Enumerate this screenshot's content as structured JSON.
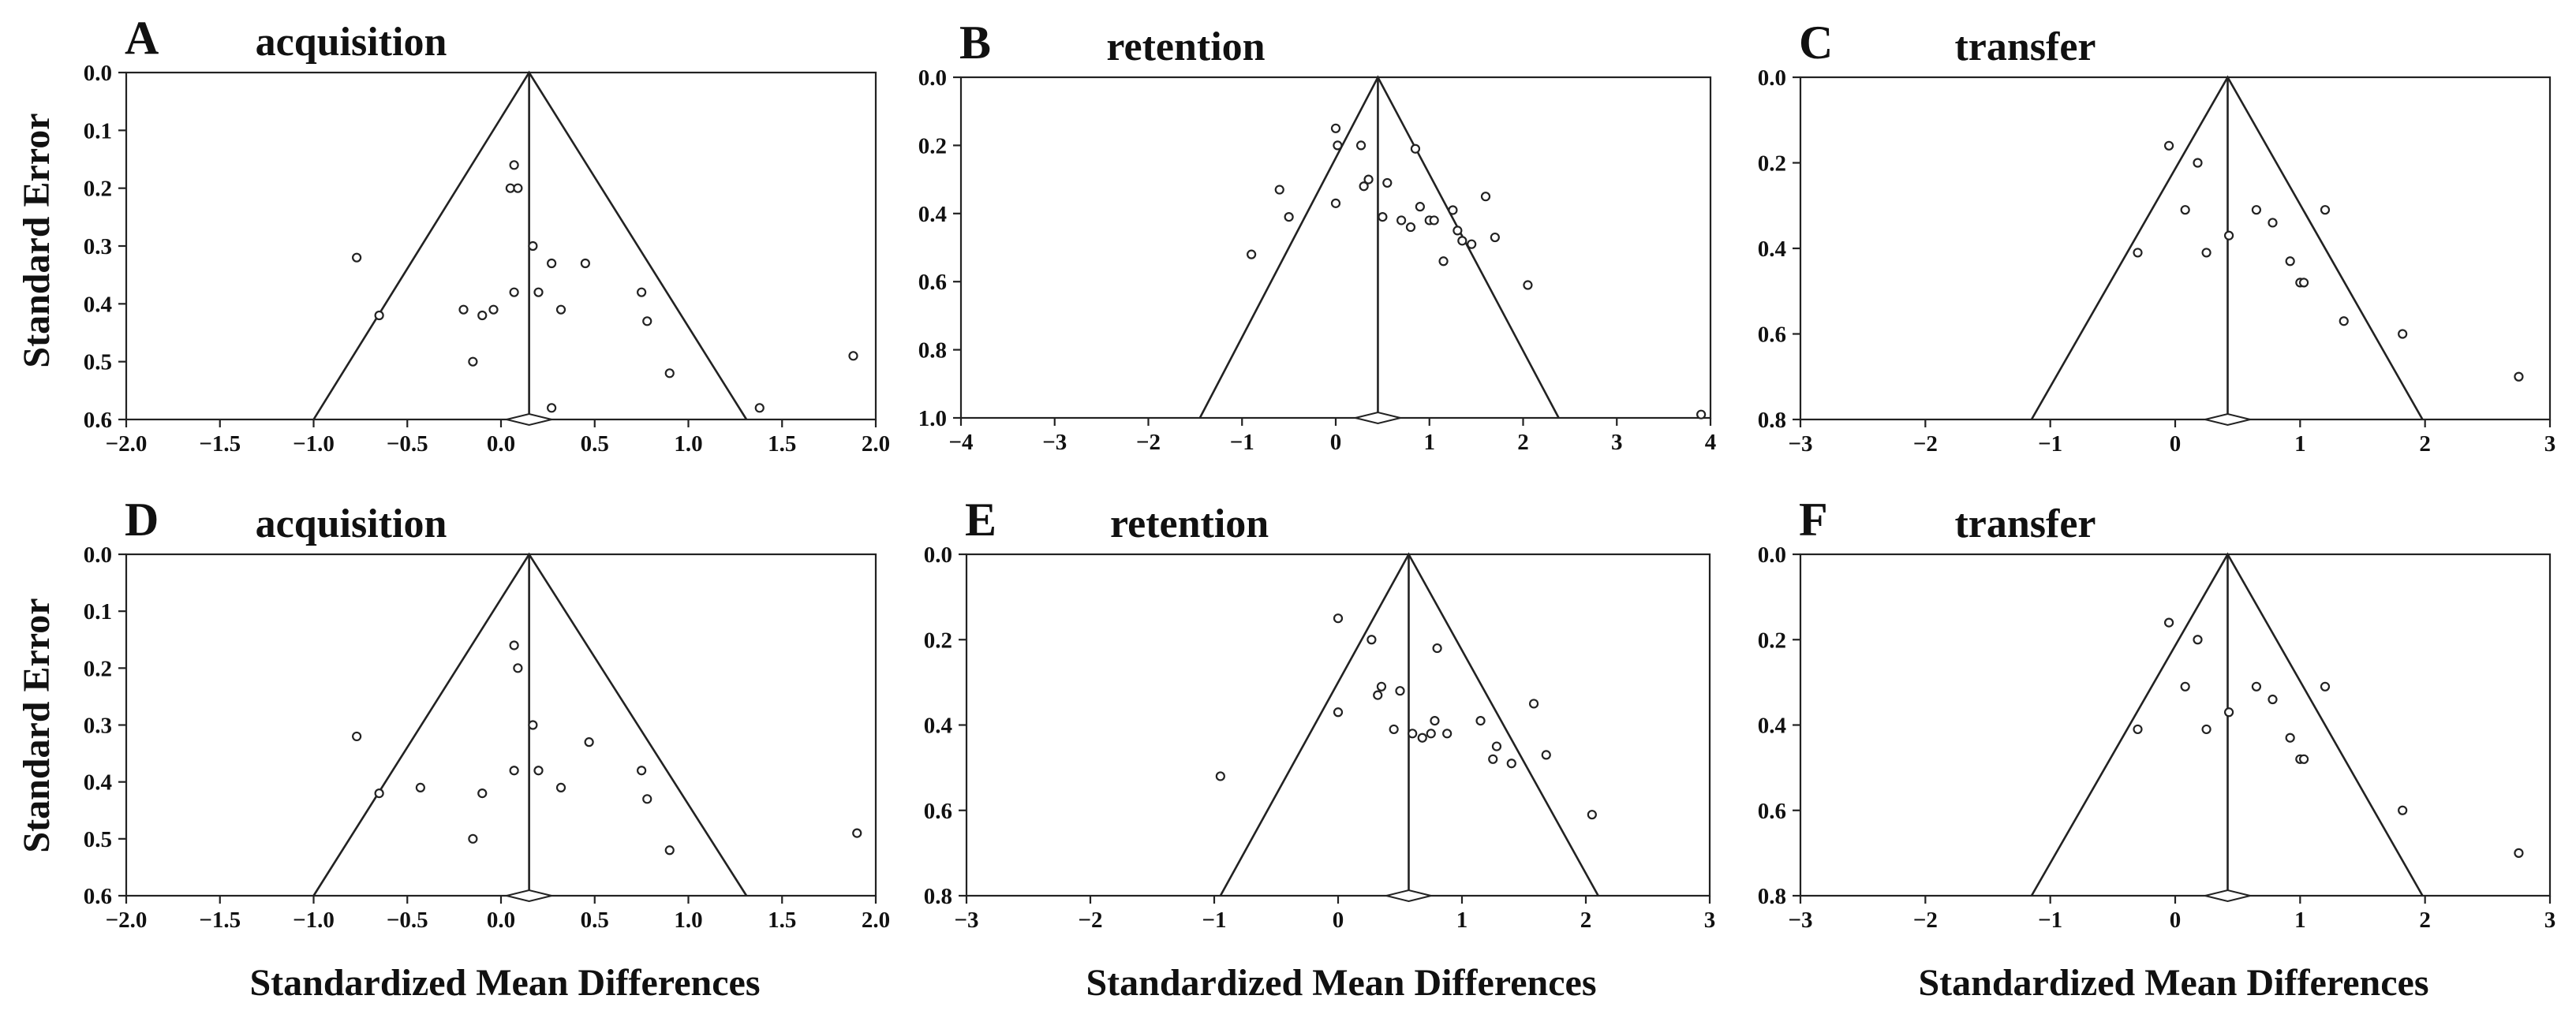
{
  "figure": {
    "ylabel": "Standard Error",
    "xlabel": "Standardized Mean Differences"
  },
  "chart_data": [
    {
      "id": "A",
      "letter": "A",
      "type": "scatter",
      "title": "acquisition",
      "xlim": [
        -2.0,
        2.0
      ],
      "ylim": [
        0.0,
        0.6
      ],
      "y_inverted": true,
      "xticks": [
        -2.0,
        -1.5,
        -1.0,
        -0.5,
        0.0,
        0.5,
        1.0,
        1.5,
        2.0
      ],
      "xtick_labels": [
        "−2.0",
        "−1.5",
        "−1.0",
        "−0.5",
        "0.0",
        "0.5",
        "1.0",
        "1.5",
        "2.0"
      ],
      "yticks": [
        0.0,
        0.1,
        0.2,
        0.3,
        0.4,
        0.5,
        0.6
      ],
      "ytick_labels": [
        "0.0",
        "0.1",
        "0.2",
        "0.3",
        "0.4",
        "0.5",
        "0.6"
      ],
      "pooled_effect": 0.15,
      "funnel_base": [
        -1.0,
        1.31
      ],
      "xlabel": "",
      "ylabel": "Standard Error",
      "points": [
        {
          "x": -0.77,
          "y": 0.32
        },
        {
          "x": -0.65,
          "y": 0.42
        },
        {
          "x": -0.2,
          "y": 0.41
        },
        {
          "x": -0.15,
          "y": 0.5
        },
        {
          "x": -0.1,
          "y": 0.42
        },
        {
          "x": -0.04,
          "y": 0.41
        },
        {
          "x": 0.05,
          "y": 0.2
        },
        {
          "x": 0.07,
          "y": 0.16
        },
        {
          "x": 0.09,
          "y": 0.2
        },
        {
          "x": 0.07,
          "y": 0.38
        },
        {
          "x": 0.17,
          "y": 0.3
        },
        {
          "x": 0.2,
          "y": 0.38
        },
        {
          "x": 0.27,
          "y": 0.33
        },
        {
          "x": 0.32,
          "y": 0.41
        },
        {
          "x": 0.45,
          "y": 0.33
        },
        {
          "x": 0.75,
          "y": 0.38
        },
        {
          "x": 0.78,
          "y": 0.43
        },
        {
          "x": 0.9,
          "y": 0.52
        },
        {
          "x": 0.27,
          "y": 0.58
        },
        {
          "x": 1.38,
          "y": 0.58
        },
        {
          "x": 1.88,
          "y": 0.49
        }
      ]
    },
    {
      "id": "B",
      "letter": "B",
      "type": "scatter",
      "title": "retention",
      "xlim": [
        -4,
        4
      ],
      "ylim": [
        0.0,
        1.0
      ],
      "y_inverted": true,
      "xticks": [
        -4,
        -3,
        -2,
        -1,
        0,
        1,
        2,
        3,
        4
      ],
      "xtick_labels": [
        "−4",
        "−3",
        "−2",
        "−1",
        "0",
        "1",
        "2",
        "3",
        "4"
      ],
      "yticks": [
        0.0,
        0.2,
        0.4,
        0.6,
        0.8,
        1.0
      ],
      "ytick_labels": [
        "0.0",
        "0.2",
        "0.4",
        "0.6",
        "0.8",
        "1.0"
      ],
      "pooled_effect": 0.45,
      "funnel_base": [
        -1.45,
        2.38
      ],
      "xlabel": "",
      "ylabel": "",
      "points": [
        {
          "x": -0.9,
          "y": 0.52
        },
        {
          "x": -0.6,
          "y": 0.33
        },
        {
          "x": -0.5,
          "y": 0.41
        },
        {
          "x": 0.0,
          "y": 0.15
        },
        {
          "x": 0.02,
          "y": 0.2
        },
        {
          "x": 0.0,
          "y": 0.37
        },
        {
          "x": 0.27,
          "y": 0.2
        },
        {
          "x": 0.3,
          "y": 0.32
        },
        {
          "x": 0.35,
          "y": 0.3
        },
        {
          "x": 0.5,
          "y": 0.41
        },
        {
          "x": 0.55,
          "y": 0.31
        },
        {
          "x": 0.7,
          "y": 0.42
        },
        {
          "x": 0.8,
          "y": 0.44
        },
        {
          "x": 0.85,
          "y": 0.21
        },
        {
          "x": 0.9,
          "y": 0.38
        },
        {
          "x": 1.0,
          "y": 0.42
        },
        {
          "x": 1.05,
          "y": 0.42
        },
        {
          "x": 1.15,
          "y": 0.54
        },
        {
          "x": 1.25,
          "y": 0.39
        },
        {
          "x": 1.3,
          "y": 0.45
        },
        {
          "x": 1.35,
          "y": 0.48
        },
        {
          "x": 1.45,
          "y": 0.49
        },
        {
          "x": 1.6,
          "y": 0.35
        },
        {
          "x": 1.7,
          "y": 0.47
        },
        {
          "x": 2.05,
          "y": 0.61
        },
        {
          "x": 3.9,
          "y": 0.99
        }
      ]
    },
    {
      "id": "C",
      "letter": "C",
      "type": "scatter",
      "title": "transfer",
      "xlim": [
        -3,
        3
      ],
      "ylim": [
        0.0,
        0.8
      ],
      "y_inverted": true,
      "xticks": [
        -3,
        -2,
        -1,
        0,
        1,
        2,
        3
      ],
      "xtick_labels": [
        "−3",
        "−2",
        "−1",
        "0",
        "1",
        "2",
        "3"
      ],
      "yticks": [
        0.0,
        0.2,
        0.4,
        0.6,
        0.8
      ],
      "ytick_labels": [
        "0.0",
        "0.2",
        "0.4",
        "0.6",
        "0.8"
      ],
      "pooled_effect": 0.42,
      "funnel_base": [
        -1.15,
        1.98
      ],
      "xlabel": "",
      "ylabel": "",
      "points": [
        {
          "x": -0.3,
          "y": 0.41
        },
        {
          "x": -0.05,
          "y": 0.16
        },
        {
          "x": 0.08,
          "y": 0.31
        },
        {
          "x": 0.18,
          "y": 0.2
        },
        {
          "x": 0.25,
          "y": 0.41
        },
        {
          "x": 0.43,
          "y": 0.37
        },
        {
          "x": 0.65,
          "y": 0.31
        },
        {
          "x": 0.78,
          "y": 0.34
        },
        {
          "x": 0.92,
          "y": 0.43
        },
        {
          "x": 1.0,
          "y": 0.48
        },
        {
          "x": 1.03,
          "y": 0.48
        },
        {
          "x": 1.2,
          "y": 0.31
        },
        {
          "x": 1.35,
          "y": 0.57
        },
        {
          "x": 1.82,
          "y": 0.6
        },
        {
          "x": 2.75,
          "y": 0.7
        }
      ]
    },
    {
      "id": "D",
      "letter": "D",
      "type": "scatter",
      "title": "acquisition",
      "xlim": [
        -2.0,
        2.0
      ],
      "ylim": [
        0.0,
        0.6
      ],
      "y_inverted": true,
      "xticks": [
        -2.0,
        -1.5,
        -1.0,
        -0.5,
        0.0,
        0.5,
        1.0,
        1.5,
        2.0
      ],
      "xtick_labels": [
        "−2.0",
        "−1.5",
        "−1.0",
        "−0.5",
        "0.0",
        "0.5",
        "1.0",
        "1.5",
        "2.0"
      ],
      "yticks": [
        0.0,
        0.1,
        0.2,
        0.3,
        0.4,
        0.5,
        0.6
      ],
      "ytick_labels": [
        "0.0",
        "0.1",
        "0.2",
        "0.3",
        "0.4",
        "0.5",
        "0.6"
      ],
      "pooled_effect": 0.15,
      "funnel_base": [
        -1.0,
        1.31
      ],
      "xlabel": "Standardized Mean Differences",
      "ylabel": "Standard Error",
      "points": [
        {
          "x": -0.77,
          "y": 0.32
        },
        {
          "x": -0.65,
          "y": 0.42
        },
        {
          "x": -0.43,
          "y": 0.41
        },
        {
          "x": -0.15,
          "y": 0.5
        },
        {
          "x": -0.1,
          "y": 0.42
        },
        {
          "x": 0.07,
          "y": 0.16
        },
        {
          "x": 0.09,
          "y": 0.2
        },
        {
          "x": 0.07,
          "y": 0.38
        },
        {
          "x": 0.17,
          "y": 0.3
        },
        {
          "x": 0.2,
          "y": 0.38
        },
        {
          "x": 0.32,
          "y": 0.41
        },
        {
          "x": 0.47,
          "y": 0.33
        },
        {
          "x": 0.75,
          "y": 0.38
        },
        {
          "x": 0.78,
          "y": 0.43
        },
        {
          "x": 0.9,
          "y": 0.52
        },
        {
          "x": 1.9,
          "y": 0.49
        }
      ]
    },
    {
      "id": "E",
      "letter": "E",
      "type": "scatter",
      "title": "retention",
      "xlim": [
        -3,
        3
      ],
      "ylim": [
        0.0,
        0.8
      ],
      "y_inverted": true,
      "xticks": [
        -3,
        -2,
        -1,
        0,
        1,
        2,
        3
      ],
      "xtick_labels": [
        "−3",
        "−2",
        "−1",
        "0",
        "1",
        "2",
        "3"
      ],
      "yticks": [
        0.0,
        0.2,
        0.4,
        0.6,
        0.8
      ],
      "ytick_labels": [
        "0.0",
        "0.2",
        "0.4",
        "0.6",
        "0.8"
      ],
      "pooled_effect": 0.57,
      "funnel_base": [
        -0.95,
        2.1
      ],
      "xlabel": "Standardized Mean Differences",
      "ylabel": "",
      "points": [
        {
          "x": -0.95,
          "y": 0.52
        },
        {
          "x": 0.0,
          "y": 0.15
        },
        {
          "x": 0.0,
          "y": 0.37
        },
        {
          "x": 0.27,
          "y": 0.2
        },
        {
          "x": 0.32,
          "y": 0.33
        },
        {
          "x": 0.35,
          "y": 0.31
        },
        {
          "x": 0.45,
          "y": 0.41
        },
        {
          "x": 0.5,
          "y": 0.32
        },
        {
          "x": 0.6,
          "y": 0.42
        },
        {
          "x": 0.68,
          "y": 0.43
        },
        {
          "x": 0.75,
          "y": 0.42
        },
        {
          "x": 0.78,
          "y": 0.39
        },
        {
          "x": 0.8,
          "y": 0.22
        },
        {
          "x": 0.88,
          "y": 0.42
        },
        {
          "x": 1.15,
          "y": 0.39
        },
        {
          "x": 1.25,
          "y": 0.48
        },
        {
          "x": 1.28,
          "y": 0.45
        },
        {
          "x": 1.4,
          "y": 0.49
        },
        {
          "x": 1.58,
          "y": 0.35
        },
        {
          "x": 1.68,
          "y": 0.47
        },
        {
          "x": 2.05,
          "y": 0.61
        }
      ]
    },
    {
      "id": "F",
      "letter": "F",
      "type": "scatter",
      "title": "transfer",
      "xlim": [
        -3,
        3
      ],
      "ylim": [
        0.0,
        0.8
      ],
      "y_inverted": true,
      "xticks": [
        -3,
        -2,
        -1,
        0,
        1,
        2,
        3
      ],
      "xtick_labels": [
        "−3",
        "−2",
        "−1",
        "0",
        "1",
        "2",
        "3"
      ],
      "yticks": [
        0.0,
        0.2,
        0.4,
        0.6,
        0.8
      ],
      "ytick_labels": [
        "0.0",
        "0.2",
        "0.4",
        "0.6",
        "0.8"
      ],
      "pooled_effect": 0.42,
      "funnel_base": [
        -1.15,
        1.98
      ],
      "xlabel": "Standardized Mean Differences",
      "ylabel": "",
      "points": [
        {
          "x": -0.3,
          "y": 0.41
        },
        {
          "x": -0.05,
          "y": 0.16
        },
        {
          "x": 0.08,
          "y": 0.31
        },
        {
          "x": 0.18,
          "y": 0.2
        },
        {
          "x": 0.25,
          "y": 0.41
        },
        {
          "x": 0.43,
          "y": 0.37
        },
        {
          "x": 0.65,
          "y": 0.31
        },
        {
          "x": 0.78,
          "y": 0.34
        },
        {
          "x": 0.92,
          "y": 0.43
        },
        {
          "x": 1.0,
          "y": 0.48
        },
        {
          "x": 1.03,
          "y": 0.48
        },
        {
          "x": 1.2,
          "y": 0.31
        },
        {
          "x": 1.82,
          "y": 0.6
        },
        {
          "x": 2.75,
          "y": 0.7
        }
      ]
    }
  ]
}
